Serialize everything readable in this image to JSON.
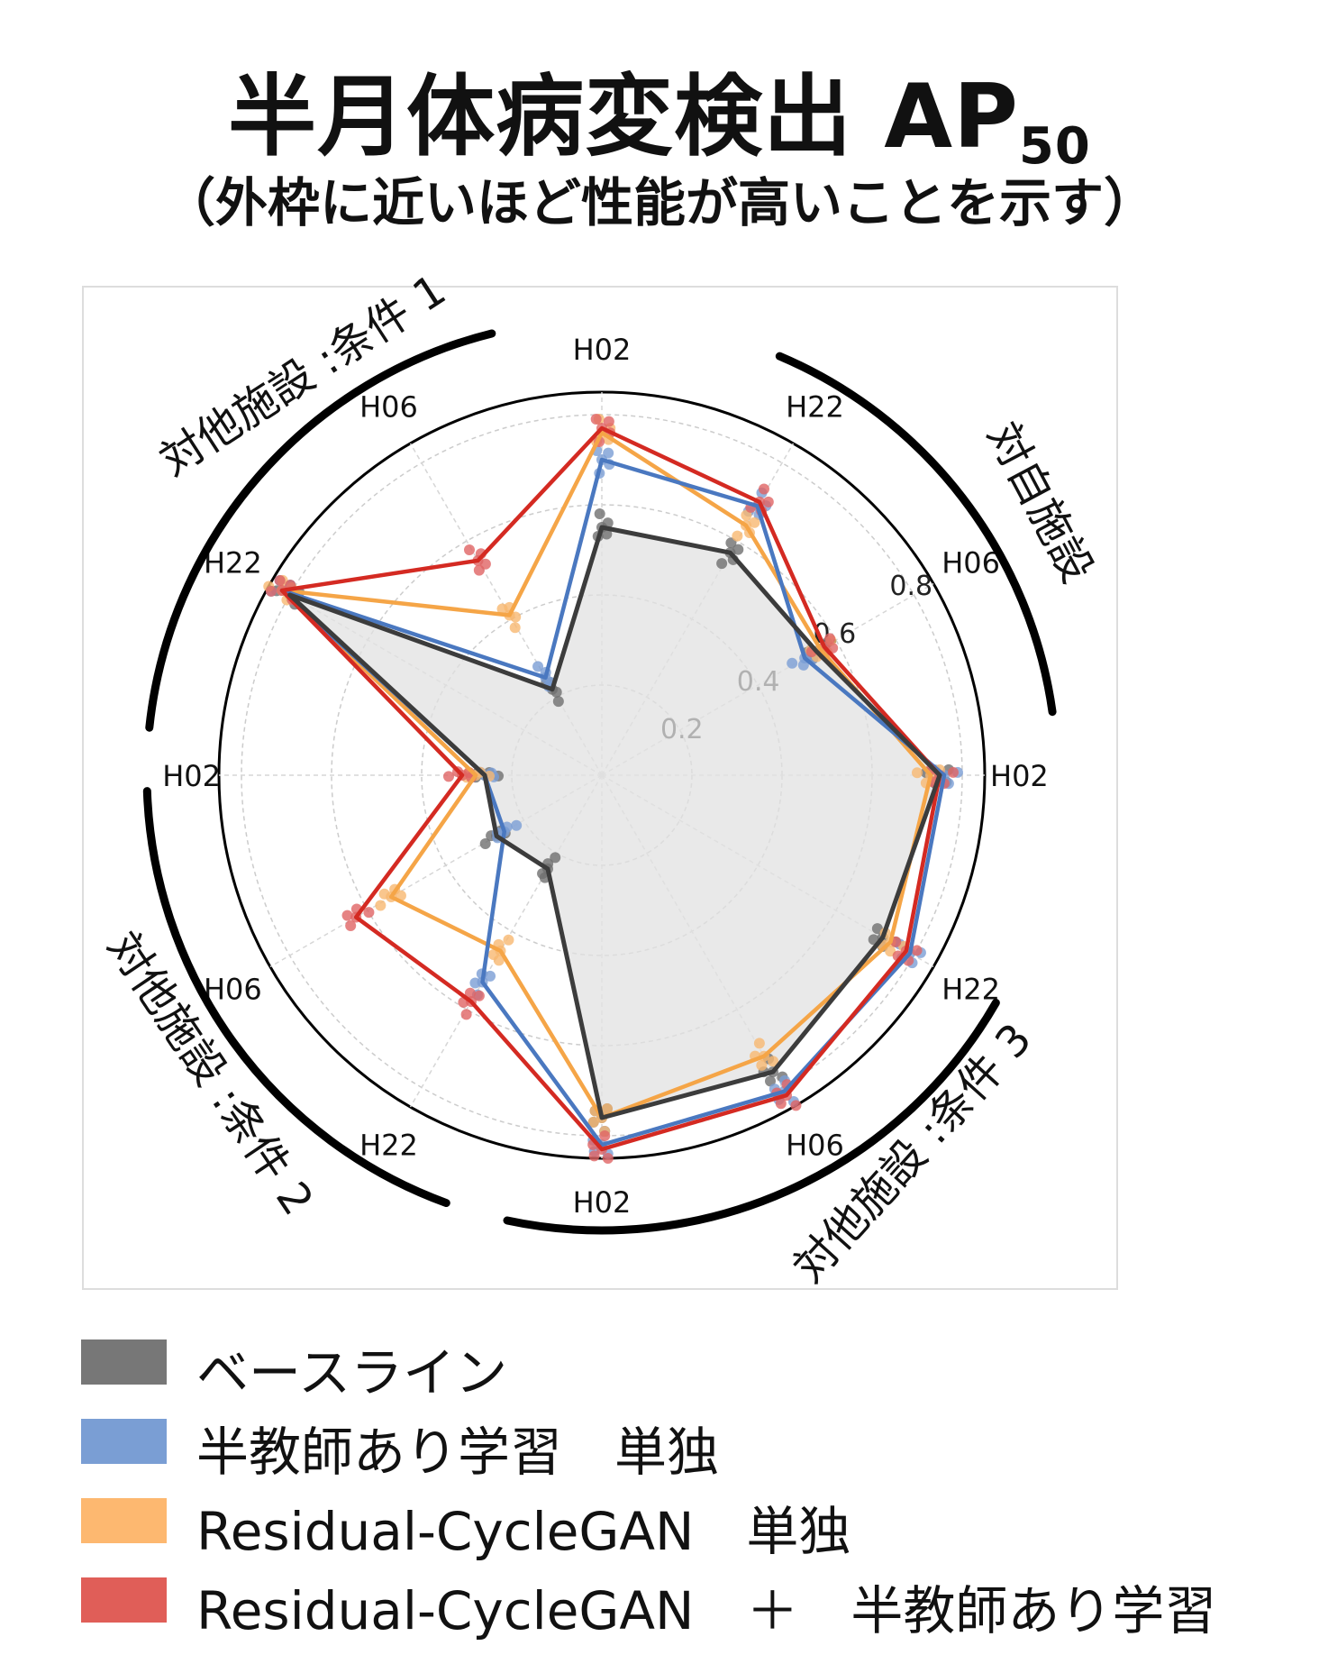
{
  "title": "半月体病変検出 AP",
  "title_subscript": "50",
  "subtitle": "（外枠に近いほど性能が高いことを示す）",
  "chart_data": {
    "type": "radar",
    "axes": [
      "H02",
      "H22",
      "H06",
      "H02",
      "H22",
      "H06",
      "H02",
      "H22",
      "H06",
      "H02",
      "H22",
      "H06"
    ],
    "radial_ticks": [
      "0.2",
      "0.4",
      "0.6",
      "0.8"
    ],
    "rlim": [
      0,
      0.85
    ],
    "groups": [
      "対自施設",
      "対他施設 :条件 3",
      "対他施設 :条件 2",
      "対他施設 :条件 1"
    ],
    "series": [
      {
        "name": "ベースライン",
        "color": "#3c3c3c",
        "point_color": "#6f6f6f",
        "values": [
          0.75,
          0.72,
          0.76,
          0.76,
          0.24,
          0.27,
          0.26,
          0.8,
          0.22,
          0.55,
          0.57,
          0.55
        ]
      },
      {
        "name": "半教師あり学習　単独",
        "color": "#4a78c0",
        "point_color": "#7a9ed4",
        "values": [
          0.76,
          0.79,
          0.81,
          0.82,
          0.53,
          0.25,
          0.26,
          0.82,
          0.25,
          0.7,
          0.69,
          0.52
        ]
      },
      {
        "name": "Residual-CycleGAN　単独",
        "color": "#f5a547",
        "point_color": "#f7b870",
        "values": [
          0.73,
          0.74,
          0.72,
          0.76,
          0.45,
          0.54,
          0.28,
          0.82,
          0.41,
          0.76,
          0.64,
          0.56
        ]
      },
      {
        "name": "Residual-CycleGAN　＋　半教師あり学習",
        "color": "#d42a22",
        "point_color": "#e06464",
        "values": [
          0.75,
          0.78,
          0.82,
          0.83,
          0.58,
          0.63,
          0.31,
          0.82,
          0.55,
          0.77,
          0.7,
          0.57
        ]
      }
    ],
    "legend_position": "bottom"
  },
  "legend": [
    {
      "label": "ベースライン",
      "color": "#777777"
    },
    {
      "label": "半教師あり学習　単独",
      "color": "#7a9ed4"
    },
    {
      "label": "Residual-CycleGAN　単独",
      "color": "#fdb870"
    },
    {
      "label": "Residual-CycleGAN　＋　半教師あり学習",
      "color": "#e05e58"
    }
  ]
}
